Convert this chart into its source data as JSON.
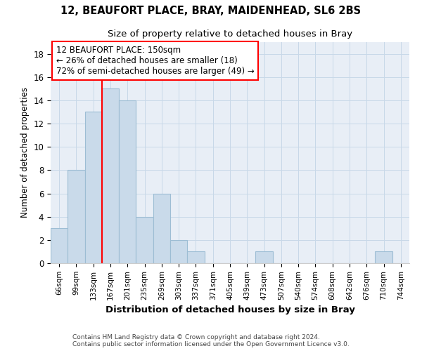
{
  "title1": "12, BEAUFORT PLACE, BRAY, MAIDENHEAD, SL6 2BS",
  "title2": "Size of property relative to detached houses in Bray",
  "xlabel": "Distribution of detached houses by size in Bray",
  "ylabel": "Number of detached properties",
  "bin_labels": [
    "66sqm",
    "99sqm",
    "133sqm",
    "167sqm",
    "201sqm",
    "235sqm",
    "269sqm",
    "303sqm",
    "337sqm",
    "371sqm",
    "405sqm",
    "439sqm",
    "473sqm",
    "507sqm",
    "540sqm",
    "574sqm",
    "608sqm",
    "642sqm",
    "676sqm",
    "710sqm",
    "744sqm"
  ],
  "values": [
    3,
    8,
    13,
    15,
    14,
    4,
    6,
    2,
    1,
    0,
    0,
    0,
    1,
    0,
    0,
    0,
    0,
    0,
    0,
    1,
    0
  ],
  "bar_color": "#c9daea",
  "bar_edge_color": "#9dbdd4",
  "grid_color": "#c8d8e8",
  "background_color": "#e8eef6",
  "red_line_x": 3.0,
  "annotation_lines": [
    "12 BEAUFORT PLACE: 150sqm",
    "← 26% of detached houses are smaller (18)",
    "72% of semi-detached houses are larger (49) →"
  ],
  "ylim": [
    0,
    19
  ],
  "yticks": [
    0,
    2,
    4,
    6,
    8,
    10,
    12,
    14,
    16,
    18
  ],
  "footer1": "Contains HM Land Registry data © Crown copyright and database right 2024.",
  "footer2": "Contains public sector information licensed under the Open Government Licence v3.0."
}
